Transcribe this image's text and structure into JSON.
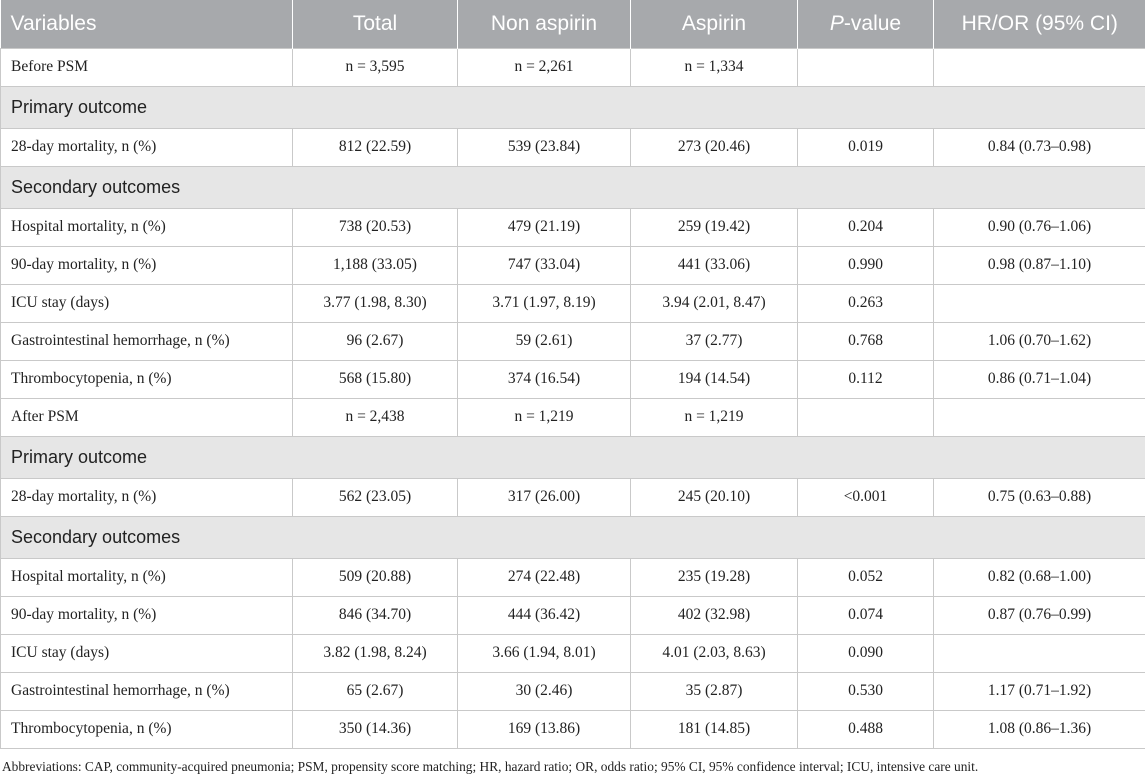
{
  "headers": [
    "Variables",
    "Total",
    "Non aspirin",
    "Aspirin",
    "-value",
    "HR/OR (95% CI)"
  ],
  "p_prefix": "P",
  "rows": [
    {
      "type": "data",
      "cells": [
        "Before PSM",
        "n = 3,595",
        "n = 2,261",
        "n = 1,334",
        "",
        ""
      ]
    },
    {
      "type": "section",
      "label": "Primary outcome"
    },
    {
      "type": "data",
      "cells": [
        "28-day mortality, n (%)",
        "812 (22.59)",
        "539 (23.84)",
        "273 (20.46)",
        "0.019",
        "0.84 (0.73–0.98)"
      ]
    },
    {
      "type": "section",
      "label": "Secondary outcomes"
    },
    {
      "type": "data",
      "cells": [
        "Hospital mortality, n (%)",
        "738 (20.53)",
        "479 (21.19)",
        "259 (19.42)",
        "0.204",
        "0.90 (0.76–1.06)"
      ]
    },
    {
      "type": "data",
      "cells": [
        "90-day mortality, n (%)",
        "1,188 (33.05)",
        "747 (33.04)",
        "441 (33.06)",
        "0.990",
        "0.98 (0.87–1.10)"
      ]
    },
    {
      "type": "data",
      "cells": [
        "ICU stay (days)",
        "3.77 (1.98, 8.30)",
        "3.71 (1.97, 8.19)",
        "3.94 (2.01, 8.47)",
        "0.263",
        ""
      ]
    },
    {
      "type": "data",
      "cells": [
        "Gastrointestinal hemorrhage, n (%)",
        "96 (2.67)",
        "59 (2.61)",
        "37 (2.77)",
        "0.768",
        "1.06 (0.70–1.62)"
      ]
    },
    {
      "type": "data",
      "cells": [
        "Thrombocytopenia, n (%)",
        "568 (15.80)",
        "374 (16.54)",
        "194 (14.54)",
        "0.112",
        "0.86 (0.71–1.04)"
      ]
    },
    {
      "type": "data",
      "cells": [
        "After PSM",
        "n = 2,438",
        "n = 1,219",
        "n = 1,219",
        "",
        ""
      ]
    },
    {
      "type": "section",
      "label": "Primary outcome"
    },
    {
      "type": "data",
      "cells": [
        "28-day mortality, n (%)",
        "562 (23.05)",
        "317 (26.00)",
        "245 (20.10)",
        "<0.001",
        "0.75 (0.63–0.88)"
      ]
    },
    {
      "type": "section",
      "label": "Secondary outcomes"
    },
    {
      "type": "data",
      "cells": [
        "Hospital mortality, n (%)",
        "509 (20.88)",
        "274 (22.48)",
        "235 (19.28)",
        "0.052",
        "0.82 (0.68–1.00)"
      ]
    },
    {
      "type": "data",
      "cells": [
        "90-day mortality, n (%)",
        "846 (34.70)",
        "444 (36.42)",
        "402 (32.98)",
        "0.074",
        "0.87 (0.76–0.99)"
      ]
    },
    {
      "type": "data",
      "cells": [
        "ICU stay (days)",
        "3.82 (1.98, 8.24)",
        "3.66 (1.94, 8.01)",
        "4.01 (2.03, 8.63)",
        "0.090",
        ""
      ]
    },
    {
      "type": "data",
      "cells": [
        "Gastrointestinal hemorrhage, n (%)",
        "65 (2.67)",
        "30 (2.46)",
        "35 (2.87)",
        "0.530",
        "1.17 (0.71–1.92)"
      ]
    },
    {
      "type": "data",
      "cells": [
        "Thrombocytopenia, n (%)",
        "350 (14.36)",
        "169 (13.86)",
        "181 (14.85)",
        "0.488",
        "1.08 (0.86–1.36)"
      ]
    }
  ],
  "footnote": "Abbreviations: CAP, community-acquired pneumonia; PSM, propensity score matching; HR, hazard ratio; OR, odds ratio; 95% CI, 95% confidence interval; ICU, intensive care unit."
}
